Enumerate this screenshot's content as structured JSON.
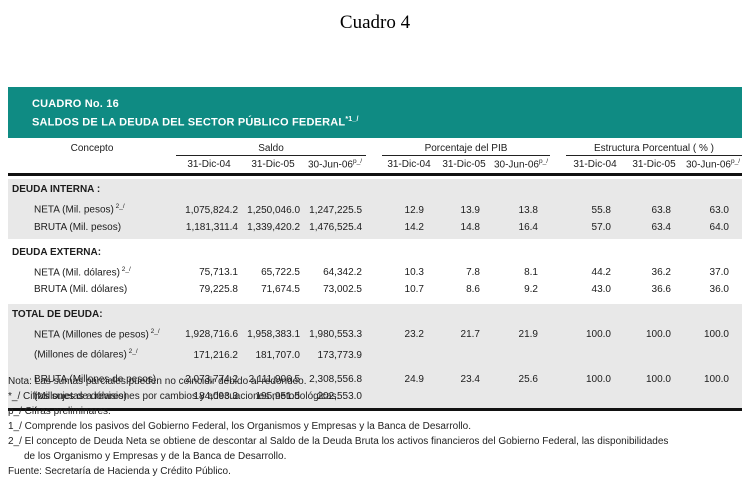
{
  "page_title": "Cuadro 4",
  "banner": {
    "line1": "CUADRO No.  16",
    "line2": "SALDOS DE LA DEUDA DEL SECTOR PÚBLICO FEDERAL",
    "line2_sup": "*1_/",
    "color": "#0f8b83"
  },
  "table": {
    "concept_header": "Concepto",
    "groups": [
      {
        "label": "Saldo"
      },
      {
        "label": "Porcentaje del PIB"
      },
      {
        "label": "Estructura  Porcentual ( % )"
      }
    ],
    "date_headers": [
      "31-Dic-04",
      "31-Dic-05",
      "30-Jun-06"
    ],
    "date_sup": "p_/",
    "sections": [
      {
        "title": "DEUDA INTERNA :",
        "shaded": true,
        "rows": [
          {
            "label": "NETA (Mil. pesos)",
            "label_sup": "2_/",
            "saldo": [
              "1,075,824.2",
              "1,250,046.0",
              "1,247,225.5"
            ],
            "pib": [
              "12.9",
              "13.9",
              "13.8"
            ],
            "estructura": [
              "55.8",
              "63.8",
              "63.0"
            ]
          },
          {
            "label": "BRUTA (Mil. pesos)",
            "label_sup": "",
            "saldo": [
              "1,181,311.4",
              "1,339,420.2",
              "1,476,525.4"
            ],
            "pib": [
              "14.2",
              "14.8",
              "16.4"
            ],
            "estructura": [
              "57.0",
              "63.4",
              "64.0"
            ]
          }
        ]
      },
      {
        "title": "DEUDA EXTERNA:",
        "shaded": false,
        "rows": [
          {
            "label": "NETA (Mil. dólares)",
            "label_sup": "2_/",
            "saldo": [
              "75,713.1",
              "65,722.5",
              "64,342.2"
            ],
            "pib": [
              "10.3",
              "7.8",
              "8.1"
            ],
            "estructura": [
              "44.2",
              "36.2",
              "37.0"
            ]
          },
          {
            "label": "BRUTA (Mil. dólares)",
            "label_sup": "",
            "saldo": [
              "79,225.8",
              "71,674.5",
              "73,002.5"
            ],
            "pib": [
              "10.7",
              "8.6",
              "9.2"
            ],
            "estructura": [
              "43.0",
              "36.6",
              "36.0"
            ]
          }
        ]
      },
      {
        "title": "TOTAL DE DEUDA:",
        "shaded": true,
        "rows": [
          {
            "label": "NETA (Millones de pesos)",
            "label_sup": "2_/",
            "saldo": [
              "1,928,716.6",
              "1,958,383.1",
              "1,980,553.3"
            ],
            "pib": [
              "23.2",
              "21.7",
              "21.9"
            ],
            "estructura": [
              "100.0",
              "100.0",
              "100.0"
            ]
          },
          {
            "label": "(Millones de dólares)",
            "label_sup": "2_/",
            "saldo": [
              "171,216.2",
              "181,707.0",
              "173,773.9"
            ],
            "pib": [
              "",
              "",
              ""
            ],
            "estructura": [
              "",
              "",
              ""
            ]
          },
          {
            "spacer": true
          },
          {
            "label": "BRUTA (Millones de pesos)",
            "label_sup": "",
            "saldo": [
              "2,073,774.2",
              "2,111,906.5",
              "2,308,556.8"
            ],
            "pib": [
              "24.9",
              "23.4",
              "25.6"
            ],
            "estructura": [
              "100.0",
              "100.0",
              "100.0"
            ]
          },
          {
            "label": "(Millones de dólares)",
            "label_sup": "",
            "saldo": [
              "184,093.3",
              "195,951.5",
              "202,553.0"
            ],
            "pib": [
              "",
              "",
              ""
            ],
            "estructura": [
              "",
              "",
              ""
            ]
          }
        ]
      }
    ]
  },
  "notes": [
    {
      "text": "Nota: Las sumas parciales pueden no coincidir debido al redondeo.",
      "indent": false
    },
    {
      "text": "*_/ Cifras sujetas a revisiones por cambios y adecuaciones metodológicas.",
      "indent": false
    },
    {
      "text": "p_/ Cifras preliminares.",
      "indent": false
    },
    {
      "text": "1_/ Comprende los pasivos del Gobierno Federal, los Organismos y Empresas y la Banca de Desarrollo.",
      "indent": false
    },
    {
      "text": "2_/ El concepto de Deuda Neta se obtiene de descontar al Saldo de la Deuda Bruta los activos financieros del Gobierno Federal, las disponibilidades",
      "indent": false
    },
    {
      "text": "de los Organismo y Empresas y de la Banca de Desarrollo.",
      "indent": true
    },
    {
      "text": "Fuente: Secretaría de Hacienda y Crédito Público.",
      "indent": false
    }
  ],
  "colors": {
    "banner_teal": "#0f8b83",
    "shaded_band": "#e8e8e8"
  }
}
